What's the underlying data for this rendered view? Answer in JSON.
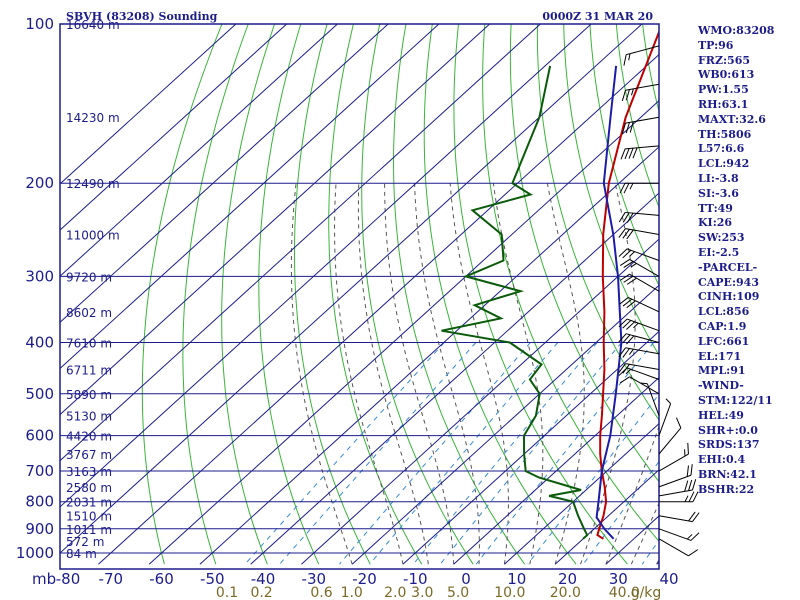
{
  "header": {
    "station": "SBVH (83208) Sounding",
    "time": "0000Z 31 MAR 20"
  },
  "chart_data": {
    "type": "line",
    "title": "SBVH (83208) Sounding",
    "subtitle": "0000Z 31 MAR 20",
    "y_axis_unit": "mb",
    "x_axis_unit": "g/kg",
    "pressure_ticks": [
      100,
      200,
      300,
      400,
      500,
      600,
      700,
      800,
      900,
      1000
    ],
    "height_ticks": [
      {
        "p": 100,
        "label": "16640 m"
      },
      {
        "p": 150,
        "label": "14230 m"
      },
      {
        "p": 200,
        "label": "12490 m"
      },
      {
        "p": 250,
        "label": "11000 m"
      },
      {
        "p": 300,
        "label": "9720 m"
      },
      {
        "p": 350,
        "label": "8602 m"
      },
      {
        "p": 400,
        "label": "7610 m"
      },
      {
        "p": 450,
        "label": "6711 m"
      },
      {
        "p": 500,
        "label": "5890 m"
      },
      {
        "p": 550,
        "label": "5130 m"
      },
      {
        "p": 600,
        "label": "4420 m"
      },
      {
        "p": 650,
        "label": "3767 m"
      },
      {
        "p": 700,
        "label": "3163 m"
      },
      {
        "p": 750,
        "label": "2580 m"
      },
      {
        "p": 800,
        "label": "2031 m"
      },
      {
        "p": 850,
        "label": "1510 m"
      },
      {
        "p": 900,
        "label": "1011 m"
      },
      {
        "p": 950,
        "label": "572 m"
      },
      {
        "p": 1000,
        "label": "84 m"
      }
    ],
    "temperature_ticks": [
      -80,
      -70,
      -60,
      -50,
      -40,
      -30,
      -20,
      -10,
      0,
      10,
      20,
      30,
      40
    ],
    "temperature_tick_labels": [
      "-80",
      "-70",
      "-60",
      "-50",
      "-40",
      "-30",
      "-20",
      "-10",
      "0",
      "10",
      "20",
      "30",
      "40"
    ],
    "mixing_ratio_ticks": [
      "0.1",
      "0.2",
      "0.6",
      "1.0",
      "2.0",
      "3.0",
      "5.0",
      "10.0",
      "20.0",
      "40.0"
    ],
    "series": [
      {
        "key": "temperature",
        "color": "#c00000",
        "points": [
          {
            "p": 940,
            "t": 24
          },
          {
            "p": 925,
            "t": 22
          },
          {
            "p": 900,
            "t": 21
          },
          {
            "p": 850,
            "t": 19
          },
          {
            "p": 800,
            "t": 16.5
          },
          {
            "p": 750,
            "t": 13
          },
          {
            "p": 700,
            "t": 9
          },
          {
            "p": 650,
            "t": 5
          },
          {
            "p": 600,
            "t": 1
          },
          {
            "p": 550,
            "t": -3
          },
          {
            "p": 500,
            "t": -7.5
          },
          {
            "p": 450,
            "t": -12.5
          },
          {
            "p": 400,
            "t": -18.5
          },
          {
            "p": 350,
            "t": -25
          },
          {
            "p": 300,
            "t": -33
          },
          {
            "p": 250,
            "t": -42
          },
          {
            "p": 200,
            "t": -52
          },
          {
            "p": 150,
            "t": -63
          },
          {
            "p": 100,
            "t": -76
          }
        ]
      },
      {
        "key": "dewpoint",
        "color": "#0a5a0a",
        "points": [
          {
            "p": 940,
            "t": 20
          },
          {
            "p": 925,
            "t": 20
          },
          {
            "p": 900,
            "t": 18
          },
          {
            "p": 850,
            "t": 14
          },
          {
            "p": 800,
            "t": 10
          },
          {
            "p": 780,
            "t": 4
          },
          {
            "p": 760,
            "t": 9
          },
          {
            "p": 720,
            "t": -2
          },
          {
            "p": 700,
            "t": -6
          },
          {
            "p": 650,
            "t": -10
          },
          {
            "p": 600,
            "t": -14
          },
          {
            "p": 550,
            "t": -16
          },
          {
            "p": 500,
            "t": -20
          },
          {
            "p": 470,
            "t": -25
          },
          {
            "p": 440,
            "t": -26
          },
          {
            "p": 400,
            "t": -37
          },
          {
            "p": 380,
            "t": -53
          },
          {
            "p": 360,
            "t": -44
          },
          {
            "p": 340,
            "t": -52
          },
          {
            "p": 320,
            "t": -46
          },
          {
            "p": 300,
            "t": -60
          },
          {
            "p": 280,
            "t": -56
          },
          {
            "p": 250,
            "t": -62
          },
          {
            "p": 225,
            "t": -73
          },
          {
            "p": 210,
            "t": -65
          },
          {
            "p": 200,
            "t": -71
          },
          {
            "p": 150,
            "t": -80
          },
          {
            "p": 120,
            "t": -89
          }
        ]
      },
      {
        "key": "parcel",
        "color": "#1c1ca8",
        "points": [
          {
            "p": 940,
            "t": 26
          },
          {
            "p": 900,
            "t": 22
          },
          {
            "p": 856,
            "t": 18
          },
          {
            "p": 800,
            "t": 15
          },
          {
            "p": 700,
            "t": 9
          },
          {
            "p": 600,
            "t": 3
          },
          {
            "p": 500,
            "t": -5
          },
          {
            "p": 400,
            "t": -15
          },
          {
            "p": 300,
            "t": -30
          },
          {
            "p": 250,
            "t": -40
          },
          {
            "p": 200,
            "t": -53
          },
          {
            "p": 150,
            "t": -66
          },
          {
            "p": 120,
            "t": -76
          }
        ]
      }
    ],
    "wind_barbs": [
      {
        "p": 940,
        "dir": 120,
        "spd": 10
      },
      {
        "p": 900,
        "dir": 110,
        "spd": 15
      },
      {
        "p": 850,
        "dir": 100,
        "spd": 20
      },
      {
        "p": 800,
        "dir": 90,
        "spd": 25
      },
      {
        "p": 780,
        "dir": 80,
        "spd": 30
      },
      {
        "p": 750,
        "dir": 70,
        "spd": 20
      },
      {
        "p": 700,
        "dir": 60,
        "spd": 15
      },
      {
        "p": 650,
        "dir": 40,
        "spd": 10
      },
      {
        "p": 600,
        "dir": 20,
        "spd": 5
      },
      {
        "p": 550,
        "dir": 340,
        "spd": 5
      },
      {
        "p": 500,
        "dir": 300,
        "spd": 10
      },
      {
        "p": 470,
        "dir": 290,
        "spd": 15
      },
      {
        "p": 450,
        "dir": 280,
        "spd": 20
      },
      {
        "p": 420,
        "dir": 280,
        "spd": 25
      },
      {
        "p": 400,
        "dir": 285,
        "spd": 30
      },
      {
        "p": 380,
        "dir": 290,
        "spd": 35
      },
      {
        "p": 350,
        "dir": 295,
        "spd": 30
      },
      {
        "p": 320,
        "dir": 300,
        "spd": 30
      },
      {
        "p": 300,
        "dir": 300,
        "spd": 25
      },
      {
        "p": 280,
        "dir": 290,
        "spd": 25
      },
      {
        "p": 250,
        "dir": 280,
        "spd": 30
      },
      {
        "p": 230,
        "dir": 275,
        "spd": 30
      },
      {
        "p": 200,
        "dir": 270,
        "spd": 25
      },
      {
        "p": 170,
        "dir": 265,
        "spd": 40
      },
      {
        "p": 150,
        "dir": 260,
        "spd": 30
      },
      {
        "p": 130,
        "dir": 260,
        "spd": 25
      },
      {
        "p": 110,
        "dir": 255,
        "spd": 15
      }
    ]
  },
  "indices": [
    "WMO:83208",
    "TP:96",
    "FRZ:565",
    "WB0:613",
    "PW:1.55",
    "RH:63.1",
    "MAXT:32.6",
    "TH:5806",
    "L57:6.6",
    "LCL:942",
    "LI:-3.8",
    "SI:-3.6",
    "TT:49",
    "KI:26",
    "SW:253",
    "EI:-2.5",
    "-PARCEL-",
    "CAPE:943",
    "CINH:109",
    "LCL:856",
    "CAP:1.9",
    "LFC:661",
    "EL:171",
    "MPL:91",
    "-WIND-",
    "STM:122/11",
    "HEL:49",
    "SHR+:0.0",
    "SRDS:137",
    "EHI:0.4",
    "BRN:42.1",
    "BSHR:22"
  ],
  "colors": {
    "frame": "#1c1c8c",
    "isotherm": "#1c1c8c",
    "dry_adiabat": "#3ab43a",
    "moist_adiabat": "#555555",
    "mixing_ratio": "#3a8ad8",
    "temperature": "#c00000",
    "dewpoint": "#0a5a0a",
    "parcel": "#1c1ca8",
    "mixing_label": "#7a6a28"
  }
}
